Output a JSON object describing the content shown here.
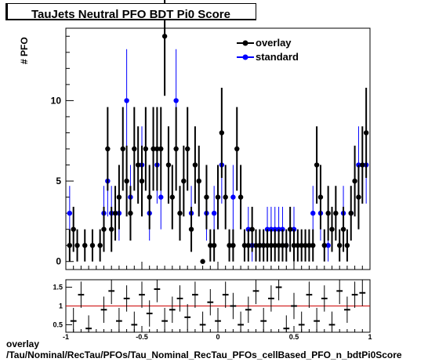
{
  "title": "TauJets Neutral PFO BDT Pi0 Score",
  "footer": {
    "line1": "overlay",
    "line2": "/Tau/Nominal/RecTau/PFOs/Tau_Nominal_RecTau_PFOs_cellBased_PFO_n_bdtPi0Score"
  },
  "chart_data": [
    {
      "type": "scatter",
      "ylabel": "# PFO",
      "xlim": [
        -1,
        1
      ],
      "ylim": [
        -0.5,
        14.5
      ],
      "yticks": [
        0,
        5,
        10
      ],
      "legend": {
        "placement": "top-right",
        "entries": [
          "overlay",
          "standard"
        ]
      },
      "colors": {
        "overlay": "#000000",
        "standard": "#0000ff"
      },
      "x": [
        -0.975,
        -0.95,
        -0.925,
        -0.875,
        -0.825,
        -0.775,
        -0.75,
        -0.725,
        -0.7,
        -0.675,
        -0.65,
        -0.625,
        -0.6,
        -0.575,
        -0.55,
        -0.525,
        -0.5,
        -0.475,
        -0.45,
        -0.425,
        -0.4,
        -0.375,
        -0.35,
        -0.325,
        -0.3,
        -0.275,
        -0.25,
        -0.225,
        -0.2,
        -0.175,
        -0.15,
        -0.125,
        -0.1,
        -0.075,
        -0.05,
        -0.025,
        0.0,
        0.025,
        0.05,
        0.075,
        0.1,
        0.125,
        0.15,
        0.175,
        0.2,
        0.225,
        0.25,
        0.275,
        0.3,
        0.325,
        0.35,
        0.375,
        0.4,
        0.425,
        0.45,
        0.475,
        0.5,
        0.525,
        0.55,
        0.575,
        0.6,
        0.625,
        0.65,
        0.675,
        0.7,
        0.725,
        0.75,
        0.775,
        0.8,
        0.825,
        0.85,
        0.875,
        0.9,
        0.925,
        0.95,
        0.975
      ],
      "series": [
        {
          "name": "overlay",
          "values": [
            1,
            2,
            1,
            1,
            1,
            1,
            2,
            7,
            2,
            3,
            4,
            7,
            5,
            3,
            7,
            6,
            5,
            7,
            4,
            7,
            7,
            7,
            14,
            6,
            4,
            7,
            3,
            5,
            7,
            2,
            6,
            5,
            0,
            4,
            1,
            1,
            4,
            8,
            4,
            1,
            1,
            7,
            4,
            1,
            1,
            2,
            1,
            1,
            1,
            1,
            1,
            1,
            1,
            1,
            1,
            2,
            1,
            1,
            1,
            1,
            1,
            1,
            6,
            4,
            1,
            3,
            2,
            3,
            1,
            2,
            1,
            3,
            5,
            4,
            6,
            8
          ],
          "errors": [
            1,
            1.4,
            1,
            1,
            1,
            1,
            1.4,
            2.6,
            1.4,
            1.7,
            2,
            2.6,
            2.2,
            1.7,
            2.6,
            2.4,
            2.2,
            2.6,
            2,
            2.6,
            2.6,
            2.6,
            3.7,
            2.4,
            2,
            2.6,
            1.7,
            2.2,
            2.6,
            1.4,
            2.4,
            2.2,
            0,
            2,
            1,
            1,
            2,
            2.8,
            2,
            1,
            1,
            2.6,
            2,
            1,
            1,
            1.4,
            1,
            1,
            1,
            1,
            1,
            1,
            1,
            1,
            1,
            1.4,
            1,
            1,
            1,
            1,
            1,
            1,
            2.4,
            2,
            1,
            1.7,
            1.4,
            1.7,
            1,
            1.4,
            1,
            1.7,
            2.2,
            2,
            2.4,
            2.8
          ]
        },
        {
          "name": "standard",
          "values": [
            3,
            0,
            0,
            0,
            0,
            0,
            3,
            5,
            3,
            0,
            3,
            0,
            10,
            4,
            0,
            0,
            6,
            0,
            3,
            0,
            6,
            4,
            0,
            0,
            0,
            10,
            0,
            0,
            0,
            3,
            0,
            0,
            0,
            3,
            0,
            3,
            0,
            6,
            0,
            0,
            4,
            0,
            0,
            0,
            2,
            1,
            0,
            1,
            1,
            2,
            2,
            2,
            2,
            2,
            1,
            0,
            2,
            0,
            0,
            0,
            0,
            3,
            0,
            3,
            0,
            1,
            0,
            0,
            0,
            3,
            0,
            3,
            0,
            6,
            0,
            6
          ],
          "errors": [
            1.7,
            0,
            0,
            0,
            0,
            0,
            1.7,
            2.2,
            1.7,
            0,
            1.7,
            0,
            3.2,
            2,
            0,
            0,
            2.4,
            0,
            1.7,
            0,
            2.4,
            2,
            0,
            0,
            0,
            3.2,
            0,
            0,
            0,
            1.7,
            0,
            0,
            0,
            1.7,
            0,
            1.7,
            0,
            2.4,
            0,
            0,
            2,
            0,
            0,
            0,
            1.4,
            1,
            0,
            1,
            1,
            1.4,
            1.4,
            1.4,
            1.4,
            1.4,
            1,
            0,
            1.4,
            0,
            0,
            0,
            0,
            1.7,
            0,
            1.7,
            0,
            1,
            0,
            0,
            0,
            1.7,
            0,
            1.7,
            0,
            2.4,
            0,
            2.4
          ]
        }
      ]
    },
    {
      "type": "scatter",
      "xlim": [
        -1,
        1
      ],
      "ylim": [
        0.3,
        1.7
      ],
      "yticks": [
        "0.5",
        "1",
        "1.5"
      ],
      "xticks": [
        "-1",
        "-0.5",
        "0",
        "0.5",
        "1"
      ],
      "reference_line": 1,
      "x": [
        -0.95,
        -0.9,
        -0.85,
        -0.75,
        -0.7,
        -0.65,
        -0.6,
        -0.55,
        -0.5,
        -0.45,
        -0.4,
        -0.35,
        -0.3,
        -0.25,
        -0.2,
        -0.15,
        -0.1,
        -0.05,
        0.0,
        0.05,
        0.1,
        0.15,
        0.2,
        0.25,
        0.3,
        0.35,
        0.4,
        0.45,
        0.5,
        0.55,
        0.6,
        0.65,
        0.7,
        0.75,
        0.8,
        0.85,
        0.9,
        0.95
      ],
      "values": [
        0.6,
        1.3,
        0.4,
        0.9,
        1.4,
        0.6,
        1.2,
        0.5,
        1.3,
        0.8,
        1.45,
        0.6,
        0.9,
        1.2,
        0.7,
        1.3,
        0.5,
        1.1,
        0.6,
        1.3,
        1.0,
        0.5,
        0.9,
        1.4,
        0.6,
        1.2,
        1.5,
        0.4,
        1.0,
        0.5,
        1.3,
        0.6,
        1.2,
        0.5,
        1.4,
        0.9,
        1.3,
        1.35
      ]
    }
  ]
}
